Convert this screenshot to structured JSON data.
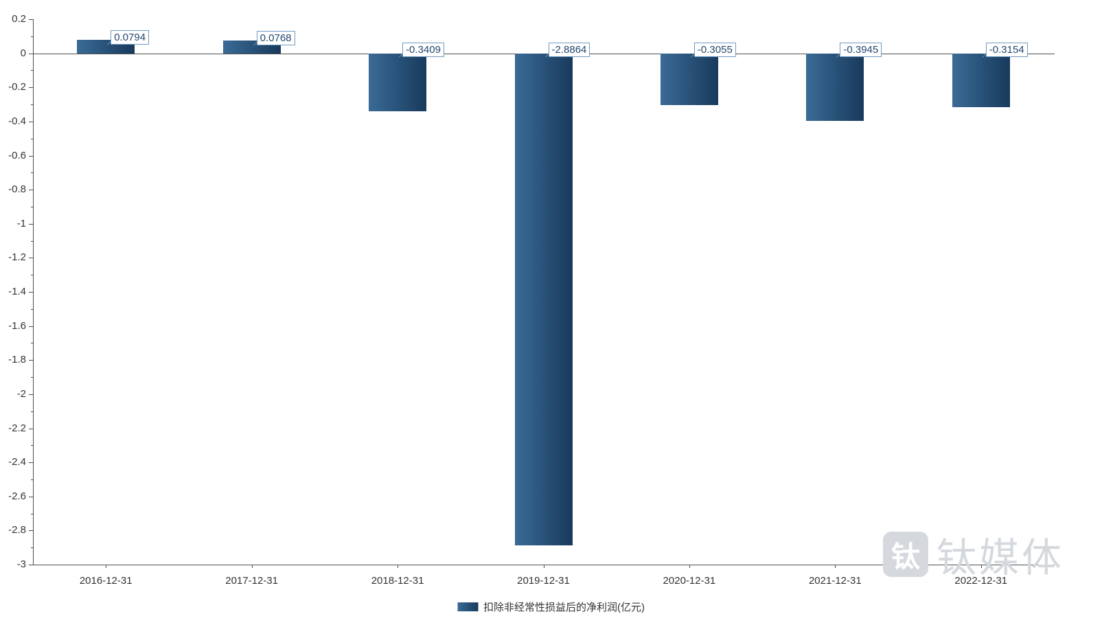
{
  "chart_data": {
    "type": "bar",
    "title": "",
    "categories": [
      "2016-12-31",
      "2017-12-31",
      "2018-12-31",
      "2019-12-31",
      "2020-12-31",
      "2021-12-31",
      "2022-12-31"
    ],
    "values": [
      0.0794,
      0.0768,
      -0.3409,
      -2.8864,
      -0.3055,
      -0.3945,
      -0.3154
    ],
    "value_labels": [
      "0.0794",
      "0.0768",
      "-0.3409",
      "-2.8864",
      "-0.3055",
      "-0.3945",
      "-0.3154"
    ],
    "series": [
      {
        "name": "扣除非经常性损益后的净利润(亿元)",
        "values": [
          0.0794,
          0.0768,
          -0.3409,
          -2.8864,
          -0.3055,
          -0.3945,
          -0.3154
        ]
      }
    ],
    "xlabel": "",
    "ylabel": "",
    "ylim": [
      -3,
      0.2
    ],
    "ytick_step": 0.2,
    "ytick_labels": [
      "0.2",
      "0",
      "-0.2",
      "-0.4",
      "-0.6",
      "-0.8",
      "-1",
      "-1.2",
      "-1.4",
      "-1.6",
      "-1.8",
      "-2",
      "-2.2",
      "-2.4",
      "-2.6",
      "-2.8",
      "-3"
    ],
    "grid": false,
    "legend_position": "bottom-center",
    "legend": "扣除非经常性损益后的净利润(亿元)",
    "colors": {
      "bar_light": "#3a6b96",
      "bar_dark": "#183a5c",
      "label_border": "#6e99c0",
      "label_text": "#24486e",
      "axis": "#4d4d4d",
      "tick_text": "#333333",
      "watermark": "#d5d9de"
    }
  },
  "watermark": {
    "text": "钛媒体",
    "logo_glyph": "钛"
  }
}
